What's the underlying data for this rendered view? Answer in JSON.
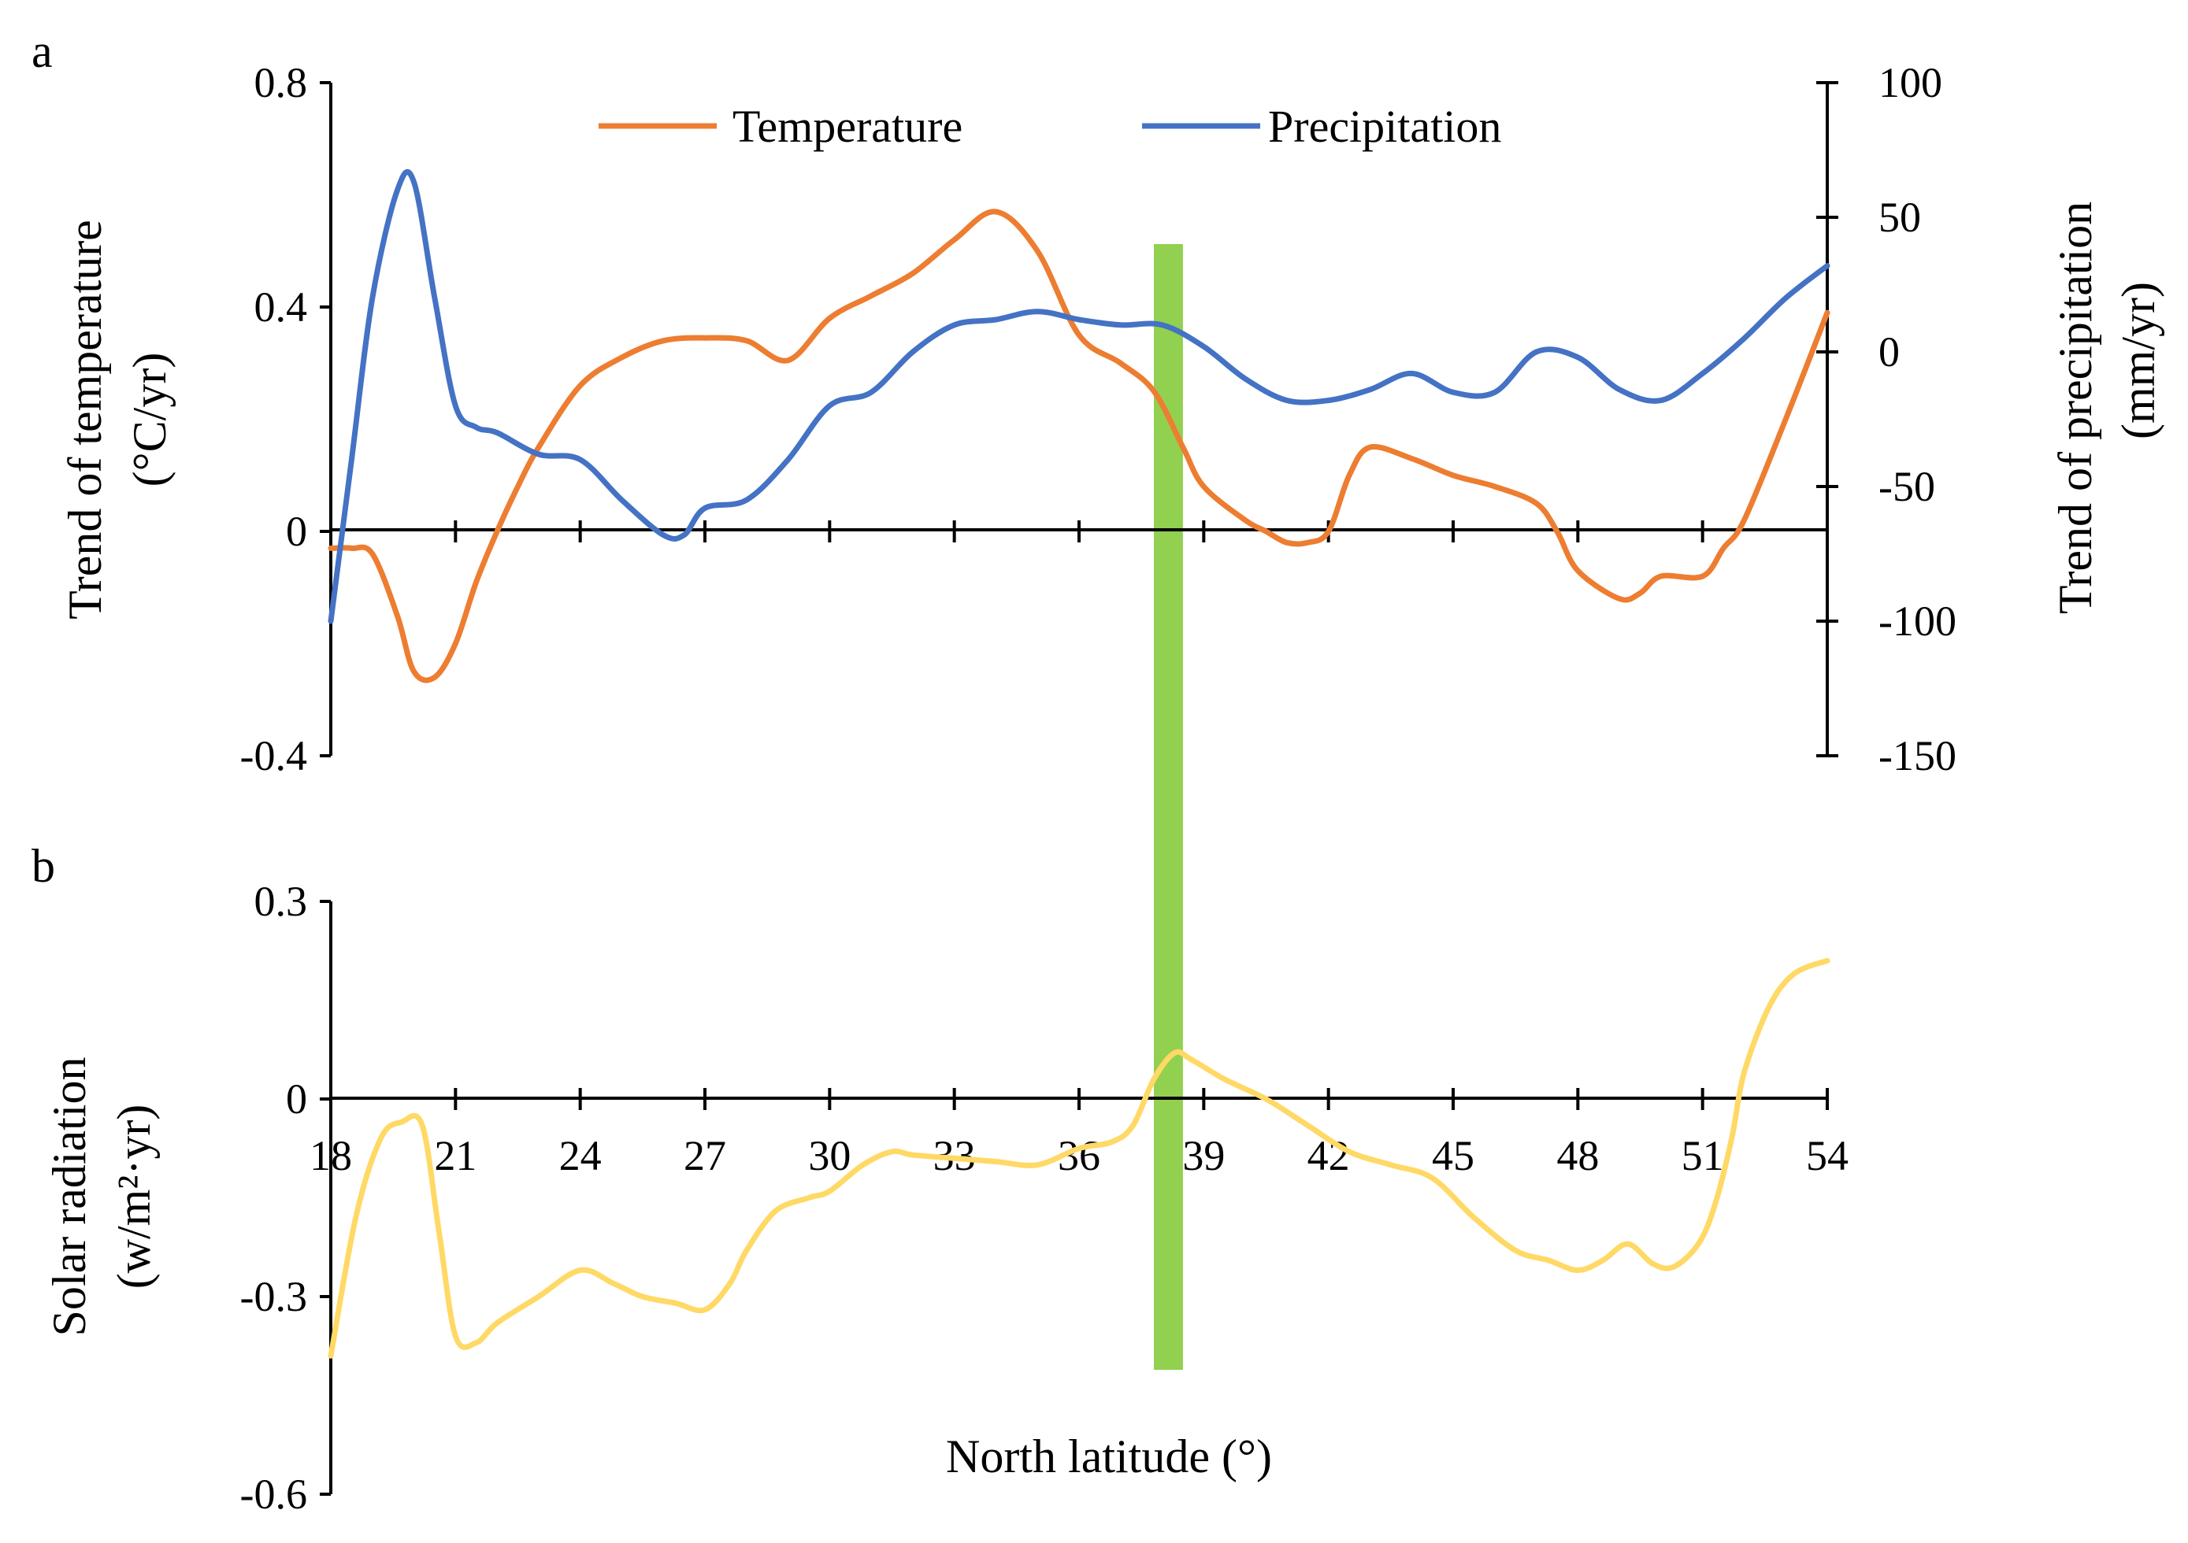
{
  "chart_data": [
    {
      "panel": "a",
      "type": "line",
      "xlabel": "",
      "ylabel": "Trend of temperature",
      "ylabel_unit": "(°C/yr)",
      "ylabel_right": "Trend of precipitation",
      "ylabel_right_unit": "(mm/yr)",
      "xlim": [
        18,
        54
      ],
      "ylim": [
        -0.4,
        0.8
      ],
      "yticks": [
        "0.8",
        "0.4",
        "0",
        "-0.4"
      ],
      "ytick_values": [
        0.8,
        0.4,
        0,
        -0.4
      ],
      "ylim_right": [
        -150,
        100
      ],
      "yticks_right": [
        "100",
        "50",
        "0",
        "-50",
        "-100",
        "-150"
      ],
      "ytick_right_values": [
        100,
        50,
        0,
        -50,
        -100,
        -150
      ],
      "legend_position": "top-center",
      "series": [
        {
          "name": "Temperature",
          "axis": "left",
          "color": "#ED7D31",
          "x": [
            18,
            18.5,
            19,
            19.6,
            20,
            20.5,
            21,
            21.5,
            22,
            22.5,
            23,
            24,
            25,
            26,
            27,
            28,
            29,
            30,
            31,
            32,
            33,
            34,
            35,
            36,
            37,
            37.8,
            38.5,
            39,
            40,
            40.5,
            41,
            41.5,
            42,
            42.5,
            43,
            44,
            45,
            46,
            47,
            47.5,
            48,
            49,
            49.5,
            50,
            51,
            51.5,
            52,
            53,
            54
          ],
          "y": [
            -0.03,
            -0.03,
            -0.04,
            -0.15,
            -0.25,
            -0.26,
            -0.2,
            -0.09,
            0.0,
            0.08,
            0.15,
            0.26,
            0.31,
            0.34,
            0.345,
            0.34,
            0.305,
            0.38,
            0.42,
            0.46,
            0.52,
            0.57,
            0.5,
            0.35,
            0.3,
            0.25,
            0.15,
            0.08,
            0.02,
            0.0,
            -0.02,
            -0.02,
            0.0,
            0.1,
            0.15,
            0.13,
            0.1,
            0.08,
            0.05,
            0.0,
            -0.07,
            -0.12,
            -0.11,
            -0.08,
            -0.08,
            -0.03,
            0.02,
            0.2,
            0.39
          ]
        },
        {
          "name": "Precipitation",
          "axis": "right",
          "color": "#4472C4",
          "x": [
            18,
            18.5,
            19,
            19.6,
            20,
            20.5,
            21,
            21.5,
            22,
            23,
            24,
            25,
            26,
            26.5,
            27,
            28,
            29,
            30,
            31,
            32,
            33,
            34,
            35,
            36,
            37,
            38,
            39,
            40,
            41,
            42,
            43,
            44,
            45,
            46,
            47,
            48,
            49,
            50,
            51,
            52,
            53,
            54
          ],
          "y": [
            -100,
            -40,
            20,
            60,
            63,
            20,
            -20,
            -28,
            -30,
            -38,
            -40,
            -55,
            -68,
            -68,
            -58,
            -55,
            -40,
            -20,
            -15,
            0,
            10,
            12,
            15,
            12,
            10,
            10,
            2,
            -10,
            -18,
            -18,
            -14,
            -8,
            -15,
            -15,
            0,
            -2,
            -14,
            -18,
            -8,
            5,
            20,
            32
          ]
        }
      ]
    },
    {
      "panel": "b",
      "type": "line",
      "xlabel": "North latitude (°)",
      "ylabel": "Solar radiation",
      "ylabel_unit": "(w/m²·yr)",
      "xlim": [
        18,
        54
      ],
      "xticks": [
        "18",
        "21",
        "24",
        "27",
        "30",
        "33",
        "36",
        "39",
        "42",
        "45",
        "48",
        "51",
        "54"
      ],
      "xtick_values": [
        18,
        21,
        24,
        27,
        30,
        33,
        36,
        39,
        42,
        45,
        48,
        51,
        54
      ],
      "ylim": [
        -0.6,
        0.3
      ],
      "yticks": [
        "0.3",
        "0",
        "-0.3",
        "-0.6"
      ],
      "ytick_values": [
        0.3,
        0,
        -0.3,
        -0.6
      ],
      "series": [
        {
          "name": "Solar radiation",
          "color": "#FFD966",
          "x": [
            18,
            18.6,
            19.2,
            19.7,
            20.2,
            20.6,
            21,
            21.5,
            22,
            23,
            24,
            24.8,
            25.5,
            26.3,
            27,
            27.6,
            28,
            28.7,
            29.5,
            30,
            30.8,
            31.5,
            32,
            33,
            34,
            35,
            36,
            36.8,
            37.3,
            37.8,
            38.3,
            38.7,
            39.5,
            40.5,
            41.5,
            42.5,
            43.5,
            44.5,
            45.5,
            46.5,
            47.3,
            48,
            48.6,
            49.2,
            49.8,
            50.3,
            50.9,
            51.3,
            51.7,
            52,
            52.6,
            53.2,
            54
          ],
          "y": [
            -0.39,
            -0.18,
            -0.06,
            -0.035,
            -0.04,
            -0.2,
            -0.36,
            -0.37,
            -0.34,
            -0.3,
            -0.26,
            -0.28,
            -0.3,
            -0.31,
            -0.32,
            -0.28,
            -0.23,
            -0.17,
            -0.15,
            -0.14,
            -0.1,
            -0.08,
            -0.085,
            -0.09,
            -0.095,
            -0.1,
            -0.075,
            -0.065,
            -0.04,
            0.03,
            0.07,
            0.06,
            0.03,
            0.0,
            -0.04,
            -0.08,
            -0.1,
            -0.12,
            -0.18,
            -0.23,
            -0.245,
            -0.26,
            -0.245,
            -0.22,
            -0.25,
            -0.255,
            -0.22,
            -0.16,
            -0.06,
            0.04,
            0.14,
            0.19,
            0.21
          ]
        }
      ]
    }
  ],
  "highlight_band": {
    "x_range": [
      37.8,
      38.5
    ],
    "color": "#92D050"
  },
  "colors": {
    "axis": "#000000",
    "background": "#FFFFFF"
  }
}
